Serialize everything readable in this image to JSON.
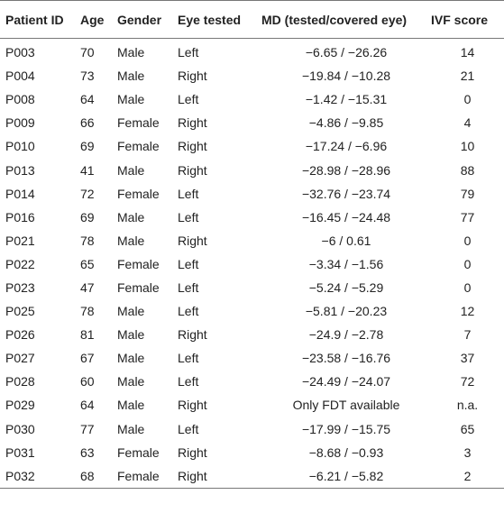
{
  "headers": [
    "Patient ID",
    "Age",
    "Gender",
    "Eye tested",
    "MD (tested/covered eye)",
    "IVF score"
  ],
  "rows": [
    [
      "P003",
      "70",
      "Male",
      "Left",
      "−6.65 / −26.26",
      "14"
    ],
    [
      "P004",
      "73",
      "Male",
      "Right",
      "−19.84 / −10.28",
      "21"
    ],
    [
      "P008",
      "64",
      "Male",
      "Left",
      "−1.42 / −15.31",
      "0"
    ],
    [
      "P009",
      "66",
      "Female",
      "Right",
      "−4.86 / −9.85",
      "4"
    ],
    [
      "P010",
      "69",
      "Female",
      "Right",
      "−17.24 / −6.96",
      "10"
    ],
    [
      "P013",
      "41",
      "Male",
      "Right",
      "−28.98 / −28.96",
      "88"
    ],
    [
      "P014",
      "72",
      "Female",
      "Left",
      "−32.76 / −23.74",
      "79"
    ],
    [
      "P016",
      "69",
      "Male",
      "Left",
      "−16.45 / −24.48",
      "77"
    ],
    [
      "P021",
      "78",
      "Male",
      "Right",
      "−6 / 0.61",
      "0"
    ],
    [
      "P022",
      "65",
      "Female",
      "Left",
      "−3.34 / −1.56",
      "0"
    ],
    [
      "P023",
      "47",
      "Female",
      "Left",
      "−5.24 / −5.29",
      "0"
    ],
    [
      "P025",
      "78",
      "Male",
      "Left",
      "−5.81 / −20.23",
      "12"
    ],
    [
      "P026",
      "81",
      "Male",
      "Right",
      "−24.9 / −2.78",
      "7"
    ],
    [
      "P027",
      "67",
      "Male",
      "Left",
      "−23.58 / −16.76",
      "37"
    ],
    [
      "P028",
      "60",
      "Male",
      "Left",
      "−24.49 / −24.07",
      "72"
    ],
    [
      "P029",
      "64",
      "Male",
      "Right",
      "Only FDT available",
      "n.a."
    ],
    [
      "P030",
      "77",
      "Male",
      "Left",
      "−17.99 / −15.75",
      "65"
    ],
    [
      "P031",
      "63",
      "Female",
      "Right",
      "−8.68 / −0.93",
      "3"
    ],
    [
      "P032",
      "68",
      "Female",
      "Right",
      "−6.21 / −5.82",
      "2"
    ]
  ]
}
